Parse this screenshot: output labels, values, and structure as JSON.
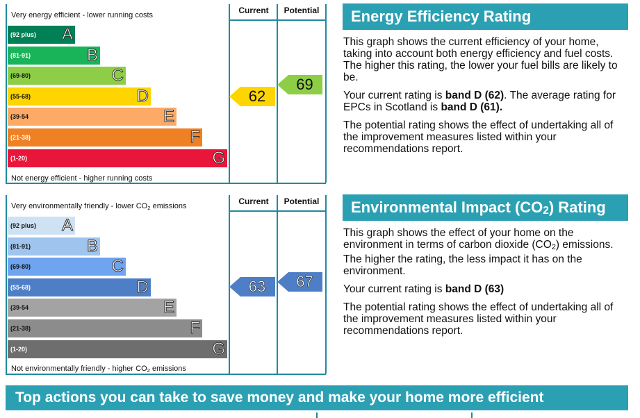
{
  "energy_chart": {
    "headers": {
      "current": "Current",
      "potential": "Potential"
    },
    "top_text": "Very energy efficient - lower running costs",
    "bottom_text": "Not energy efficient - higher running costs",
    "bands": [
      {
        "range": "(92 plus)",
        "letter": "A",
        "color": "#008054"
      },
      {
        "range": "(81-91)",
        "letter": "B",
        "color": "#19b459"
      },
      {
        "range": "(69-80)",
        "letter": "C",
        "color": "#8dce46"
      },
      {
        "range": "(55-68)",
        "letter": "D",
        "color": "#ffd500"
      },
      {
        "range": "(39-54",
        "letter": "E",
        "color": "#fcaa65"
      },
      {
        "range": "(21-38)",
        "letter": "F",
        "color": "#ef8023"
      },
      {
        "range": "(1-20)",
        "letter": "G",
        "color": "#e9153b"
      }
    ],
    "current": {
      "value": "62",
      "color": "#ffd500"
    },
    "potential": {
      "value": "69",
      "color": "#8dce46"
    }
  },
  "env_chart": {
    "headers": {
      "current": "Current",
      "potential": "Potential"
    },
    "top_text_pre": "Very environmentally friendly - lower CO",
    "top_text_sub": "2",
    "top_text_post": " emissions",
    "bottom_text_pre": "Not environmentally friendly - higher CO",
    "bottom_text_sub": "2",
    "bottom_text_post": " emissions",
    "bands": [
      {
        "range": "(92 plus)",
        "letter": "A",
        "color": "#cfe2f3"
      },
      {
        "range": "(81-91)",
        "letter": "B",
        "color": "#9fc5ee"
      },
      {
        "range": "(69-80)",
        "letter": "C",
        "color": "#6ea4f0"
      },
      {
        "range": "(55-68)",
        "letter": "D",
        "color": "#4e7fc6"
      },
      {
        "range": "(39-54",
        "letter": "E",
        "color": "#a3a3a3"
      },
      {
        "range": "(21-38)",
        "letter": "F",
        "color": "#8c8c8c"
      },
      {
        "range": "(1-20)",
        "letter": "G",
        "color": "#6e6e6e"
      }
    ],
    "current": {
      "value": "63",
      "color": "#4e7fc6"
    },
    "potential": {
      "value": "67",
      "color": "#4e7fc6"
    }
  },
  "energy_panel": {
    "title": "Energy Efficiency Rating",
    "para1": "This graph shows the current efficiency of your home, taking into account both energy efficiency and fuel costs. The higher this rating, the lower your fuel bills are likely to be.",
    "para2_pre": "Your current rating is ",
    "para2_bold1": "band D (62)",
    "para2_mid": ". The average rating for EPCs in Scotland is ",
    "para2_bold2": "band D (61).",
    "para3": "The potential rating shows the effect of undertaking all of the improvement measures listed within your recommendations report."
  },
  "env_panel": {
    "title_pre": "Environmental Impact (CO",
    "title_sub": "2",
    "title_post": ") Rating",
    "para1_pre": "This graph shows the effect of your home on the environment in terms of carbon dioxide (CO",
    "para1_sub": "2",
    "para1_post": ") emissions. The higher the rating, the less impact it has on the environment.",
    "para2_pre": "Your current rating is ",
    "para2_bold": "band D (63)",
    "para3": "The potential rating shows the effect of undertaking all of the improvement measures listed within your recommendations report."
  },
  "actions_title": "Top actions you can take to save money and make your home more efficient"
}
